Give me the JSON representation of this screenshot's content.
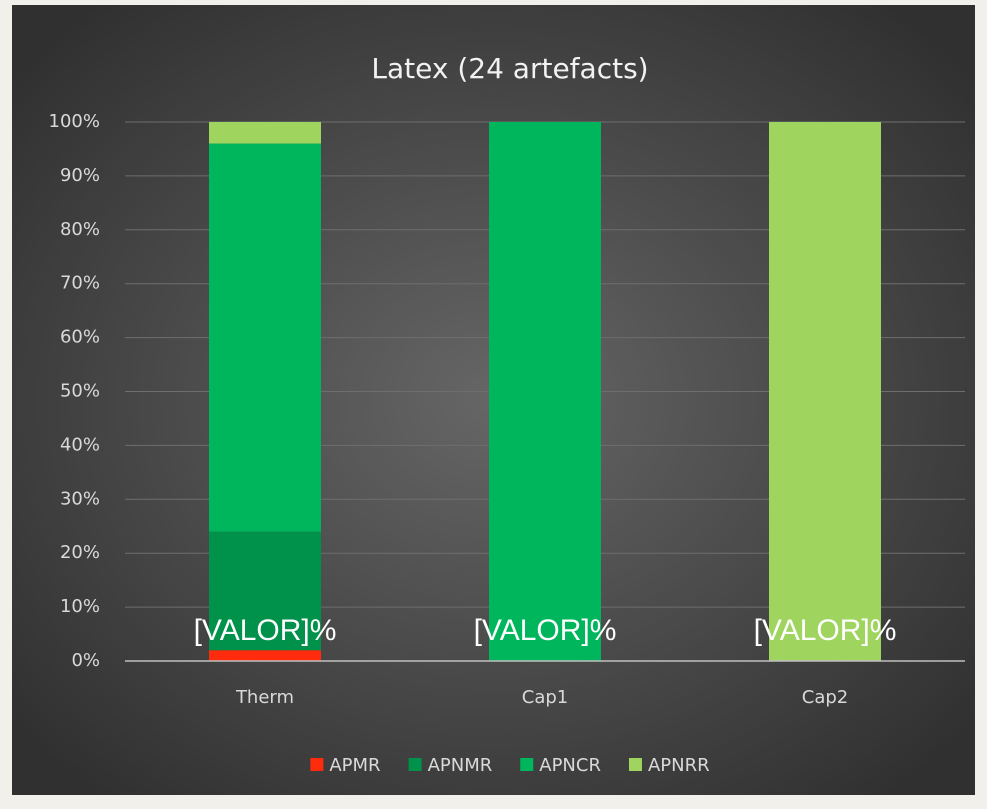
{
  "chart_data": {
    "type": "stacked_bar_100",
    "title": "Latex (24 artefacts)",
    "categories": [
      "Therm",
      "Cap1",
      "Cap2"
    ],
    "series": [
      {
        "name": "APMR",
        "color": "#fe2c0c",
        "values": [
          2,
          0,
          0
        ]
      },
      {
        "name": "APNMR",
        "color": "#00914a",
        "values": [
          22,
          0,
          0
        ]
      },
      {
        "name": "APNCR",
        "color": "#00b65c",
        "values": [
          72,
          100,
          0
        ]
      },
      {
        "name": "APNRR",
        "color": "#9fd45f",
        "values": [
          4,
          0,
          100
        ]
      }
    ],
    "annotations": [
      "[VALOR]%",
      "[VALOR]%",
      "[VALOR]%"
    ],
    "ylim": [
      0,
      100
    ],
    "yticks": [
      {
        "value": 0,
        "label": "0%"
      },
      {
        "value": 10,
        "label": "10%"
      },
      {
        "value": 20,
        "label": "20%"
      },
      {
        "value": 30,
        "label": "30%"
      },
      {
        "value": 40,
        "label": "40%"
      },
      {
        "value": 50,
        "label": "50%"
      },
      {
        "value": 60,
        "label": "60%"
      },
      {
        "value": 70,
        "label": "70%"
      },
      {
        "value": 80,
        "label": "80%"
      },
      {
        "value": 90,
        "label": "90%"
      },
      {
        "value": 100,
        "label": "100%"
      }
    ],
    "grid": true,
    "legend": "bottom"
  }
}
